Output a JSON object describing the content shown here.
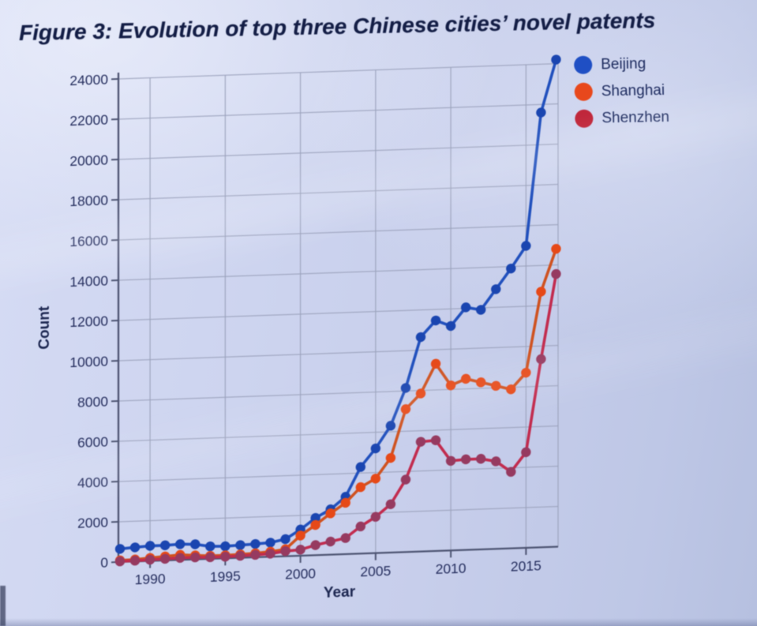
{
  "figure": {
    "title": "Figure 3: Evolution of top three Chinese cities’ novel patents"
  },
  "chart_data": {
    "type": "line",
    "title": "Figure 3: Evolution of top three Chinese cities’ novel patents",
    "xlabel": "Year",
    "ylabel": "Count",
    "ylim": [
      0,
      24000
    ],
    "ytick_step": 2000,
    "xticks": [
      1990,
      1995,
      2000,
      2005,
      2010,
      2015
    ],
    "grid": true,
    "legend_position": "top-right",
    "x": [
      1988,
      1989,
      1990,
      1991,
      1992,
      1993,
      1994,
      1995,
      1996,
      1997,
      1998,
      1999,
      2000,
      2001,
      2002,
      2003,
      2004,
      2005,
      2006,
      2007,
      2008,
      2009,
      2010,
      2011,
      2012,
      2013,
      2014,
      2015,
      2016,
      2017
    ],
    "series": [
      {
        "name": "Beijing",
        "line_color": "#2150bd",
        "marker_color": "#1a45b0",
        "legend_color": "#1f4fc4",
        "values": [
          650,
          700,
          750,
          750,
          780,
          750,
          620,
          600,
          630,
          660,
          700,
          850,
          1300,
          1850,
          2250,
          2850,
          4300,
          5200,
          6300,
          8150,
          10650,
          11450,
          11150,
          12050,
          11900,
          12900,
          13900,
          15000,
          21600,
          24200
        ]
      },
      {
        "name": "Shanghai",
        "line_color": "#cf5220",
        "marker_color": "#e64918",
        "legend_color": "#e8481c",
        "values": [
          80,
          100,
          150,
          200,
          250,
          200,
          150,
          150,
          170,
          200,
          250,
          350,
          1000,
          1500,
          2050,
          2550,
          3300,
          3700,
          4700,
          7100,
          7850,
          9300,
          8200,
          8500,
          8300,
          8100,
          7900,
          8700,
          12700,
          14800
        ]
      },
      {
        "name": "Shenzhen",
        "line_color": "#c22b4e",
        "marker_color": "#963a60",
        "legend_color": "#bf2438",
        "values": [
          30,
          40,
          60,
          80,
          100,
          100,
          80,
          80,
          100,
          120,
          150,
          250,
          300,
          500,
          650,
          800,
          1350,
          1800,
          2400,
          3600,
          5450,
          5500,
          4450,
          4500,
          4500,
          4350,
          3800,
          4750,
          9350,
          13550
        ]
      }
    ]
  },
  "colors": {
    "background": "#cbd3ee",
    "title_text": "#131d45",
    "axis_text": "#262f5f",
    "grid": "#9aa2bb",
    "axis_line": "#4d5472"
  }
}
